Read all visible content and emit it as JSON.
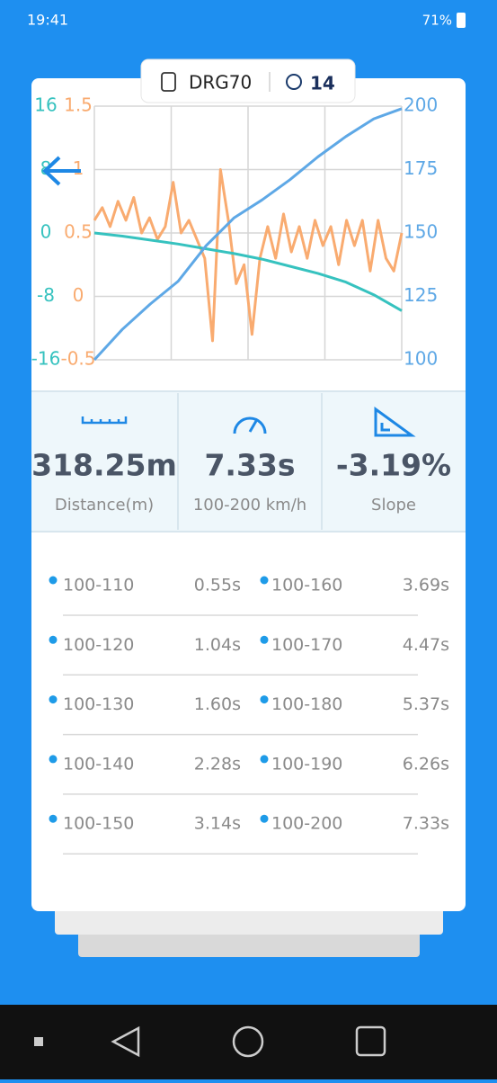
{
  "status_bar": {
    "time": "19:41",
    "battery": "71%"
  },
  "device": {
    "name": "DRG70",
    "satellites": 14
  },
  "chart_data": {
    "type": "line",
    "ylim": [
      100,
      200
    ],
    "yticks": [
      100,
      125,
      150,
      175,
      200
    ],
    "y2lim": [
      -0.5,
      1.5
    ],
    "y2ticks": [
      -0.5,
      0,
      0.5,
      1,
      1.5
    ],
    "y3lim": [
      -16,
      16
    ],
    "y3ticks": [
      -16,
      -8,
      0,
      8,
      16
    ],
    "grid": true,
    "series": [
      {
        "color": "#f9ab70",
        "axis": "y2",
        "values": [
          0.6,
          0.7,
          0.55,
          0.75,
          0.6,
          0.78,
          0.5,
          0.62,
          0.45,
          0.55,
          0.9,
          0.5,
          0.6,
          0.45,
          0.3,
          -0.35,
          1.0,
          0.6,
          0.1,
          0.25,
          -0.3,
          0.3,
          0.55,
          0.3,
          0.65,
          0.35,
          0.55,
          0.3,
          0.6,
          0.4,
          0.55,
          0.25,
          0.6,
          0.4,
          0.6,
          0.2,
          0.6,
          0.3,
          0.2,
          0.5
        ]
      },
      {
        "color": "#36c2bf",
        "axis": "y3",
        "values": [
          0,
          -0.4,
          -0.9,
          -1.4,
          -2,
          -2.6,
          -3.3,
          -4.2,
          -5.1,
          -6.2,
          -7.8,
          -9.8
        ]
      },
      {
        "color": "#5ea8e6",
        "values": [
          100,
          112,
          122,
          131,
          145,
          156,
          163,
          171,
          180,
          188,
          195,
          199
        ]
      }
    ]
  },
  "stats": [
    {
      "value": "318.25m",
      "label": "Distance(m)"
    },
    {
      "value": "7.33s",
      "label": "100-200 km/h"
    },
    {
      "value": "-3.19%",
      "label": "Slope"
    }
  ],
  "splits": [
    [
      "100-110",
      "0.55s",
      "100-160",
      "3.69s"
    ],
    [
      "100-120",
      "1.04s",
      "100-170",
      "4.47s"
    ],
    [
      "100-130",
      "1.60s",
      "100-180",
      "5.37s"
    ],
    [
      "100-140",
      "2.28s",
      "100-190",
      "6.26s"
    ],
    [
      "100-150",
      "3.14s",
      "100-200",
      "7.33s"
    ]
  ]
}
